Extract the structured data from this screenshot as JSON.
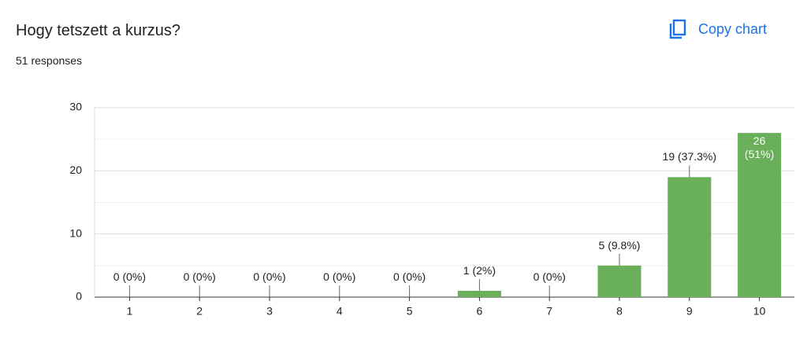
{
  "chart_data": {
    "type": "bar",
    "title": "Hogy tetszett a kurzus?",
    "subtitle": "51 responses",
    "categories": [
      "1",
      "2",
      "3",
      "4",
      "5",
      "6",
      "7",
      "8",
      "9",
      "10"
    ],
    "values": [
      0,
      0,
      0,
      0,
      0,
      1,
      0,
      5,
      19,
      26
    ],
    "value_labels": [
      "0 (0%)",
      "0 (0%)",
      "0 (0%)",
      "0 (0%)",
      "0 (0%)",
      "1 (2%)",
      "0 (0%)",
      "5 (9.8%)",
      "19 (37.3%)",
      "26 (51%)"
    ],
    "color": "#6aaf5a",
    "ylim": [
      0,
      30
    ],
    "yticks": [
      0,
      10,
      20,
      30
    ],
    "grid": true
  },
  "ui": {
    "copy_button": "Copy chart"
  }
}
